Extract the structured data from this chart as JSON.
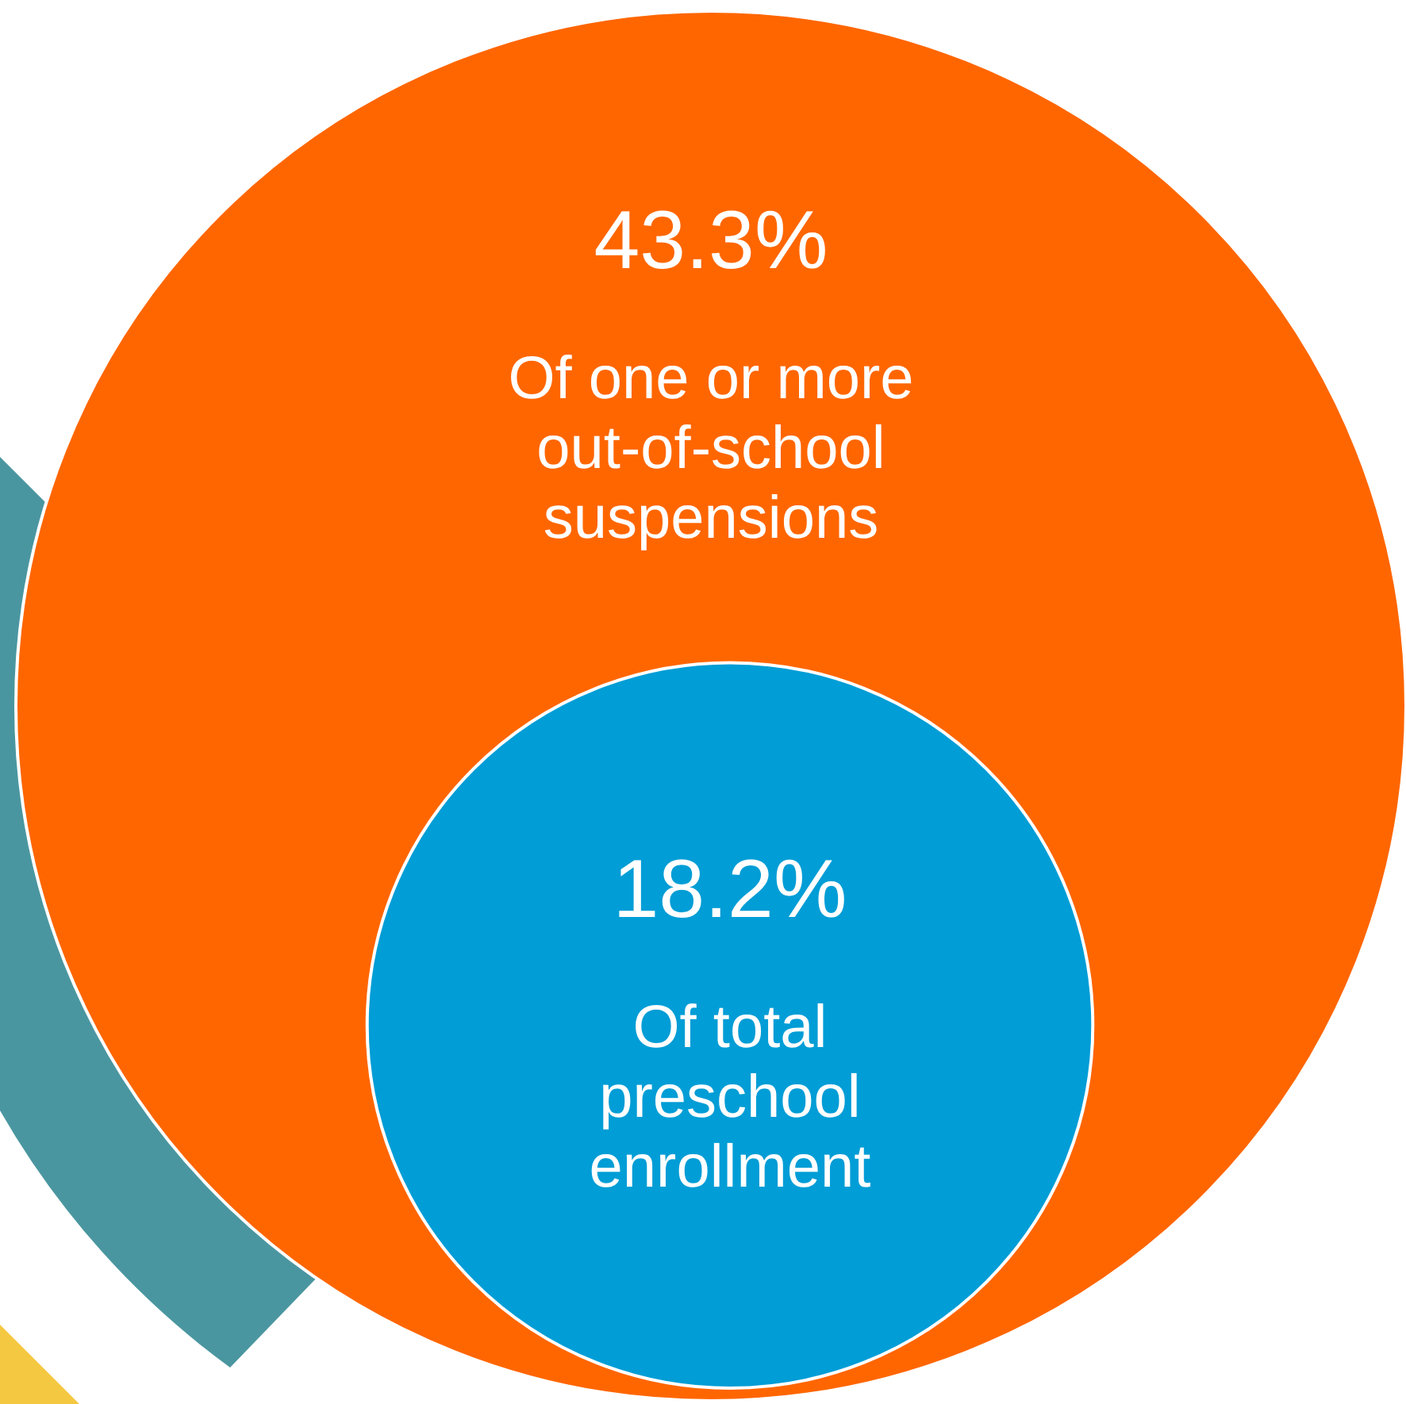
{
  "chart_data": {
    "type": "other",
    "categories": [
      "Of one or more out-of-school suspensions",
      "Of total preschool enrollment"
    ],
    "values": [
      43.3,
      18.2
    ],
    "value_labels": [
      "43.3%",
      "18.2%"
    ],
    "colors": [
      "#ff6600",
      "#009dd6"
    ]
  }
}
